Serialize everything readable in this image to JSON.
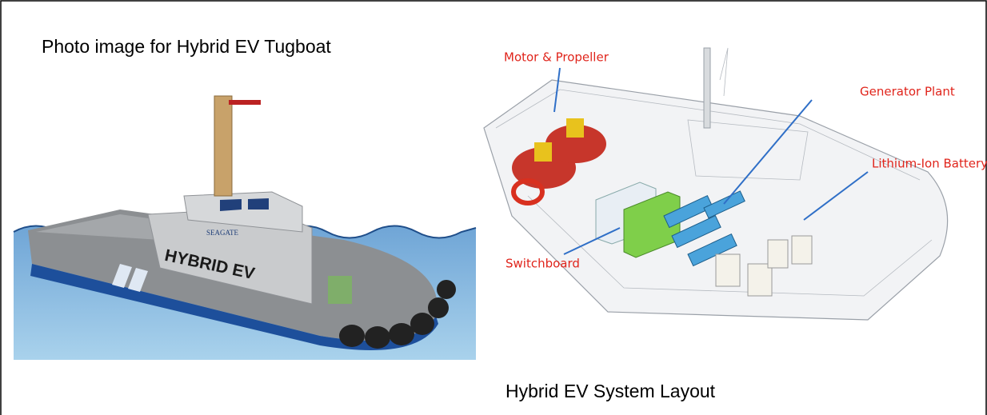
{
  "left": {
    "caption": "Photo image for Hybrid EV Tugboat",
    "boat_name": "HYBRID EV",
    "brand": "SEAGATE"
  },
  "right": {
    "caption": "Hybrid EV System Layout",
    "labels": [
      "Motor & Propeller",
      "Generator Plant",
      "Lithium-Ion Battery",
      "Switchboard"
    ]
  }
}
